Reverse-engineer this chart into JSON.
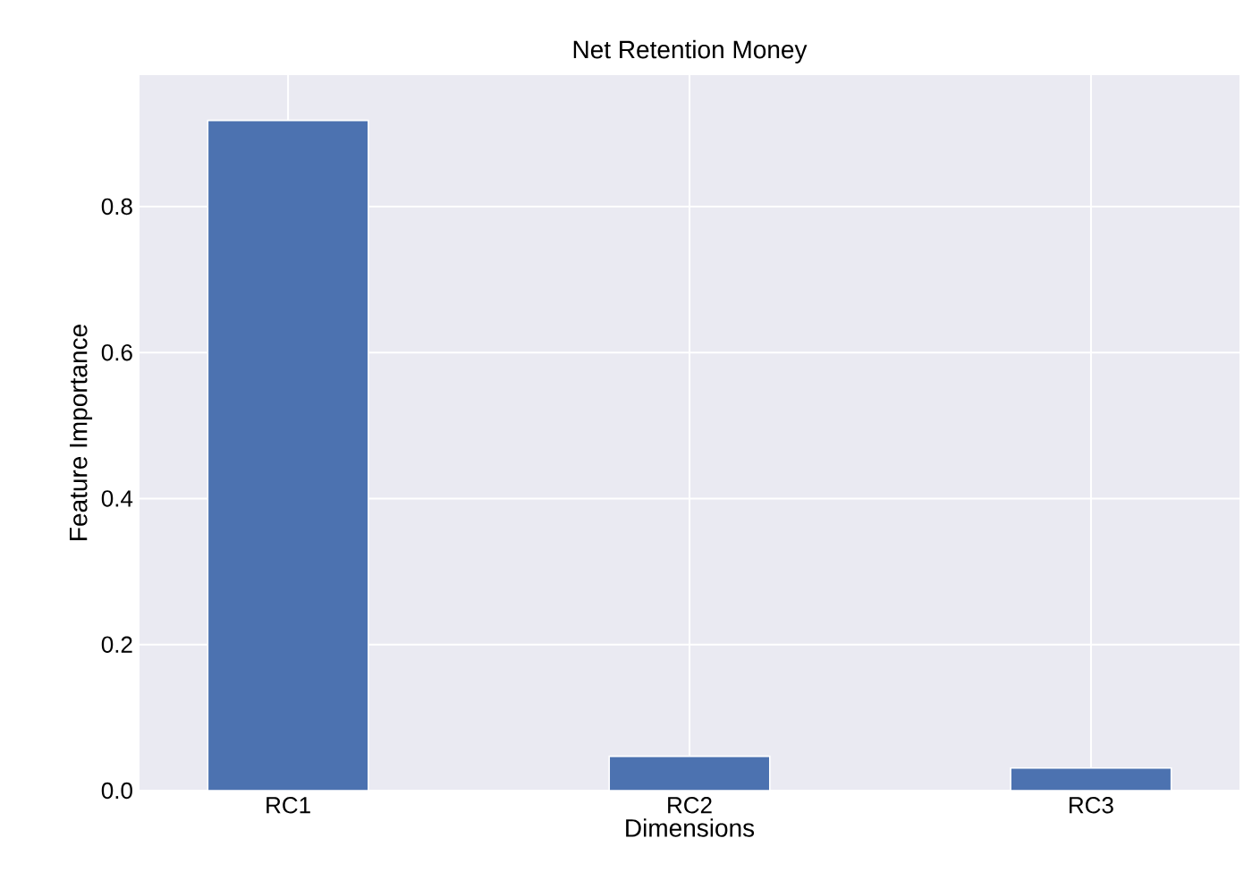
{
  "chart_data": {
    "type": "bar",
    "title": "Net Retention Money",
    "xlabel": "Dimensions",
    "ylabel": "Feature Importance",
    "categories": [
      "RC1",
      "RC2",
      "RC3"
    ],
    "values": [
      0.918,
      0.047,
      0.031
    ],
    "color": "#4c72b0",
    "ylim": [
      0,
      0.98
    ],
    "yticks": [
      {
        "value": 0,
        "label": "0.0"
      },
      0.2,
      0.4,
      0.6,
      0.8
    ],
    "grid": true
  }
}
